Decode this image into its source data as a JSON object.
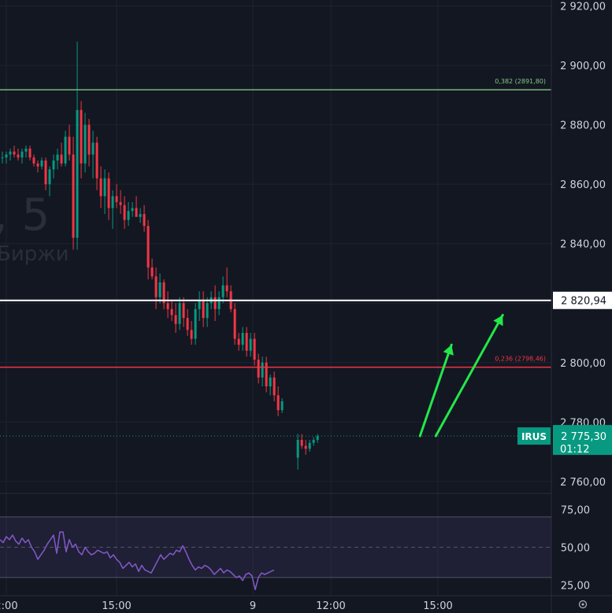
{
  "chart_data": [
    {
      "type": "candlestick",
      "ticker": "IRUS",
      "watermark": {
        "interval": ", 5",
        "source": "Биржи"
      },
      "y_ticks": [
        "2 920,00",
        "2 900,00",
        "2 880,00",
        "2 860,00",
        "2 840,00",
        "2 820,00",
        "2 800,00",
        "2 780,00",
        "2 760,00"
      ],
      "ylim": [
        2756,
        2922
      ],
      "x_ticks": [
        "2:00",
        "15:00",
        "9",
        "12:00",
        "15:00"
      ],
      "grid": true,
      "last_price": {
        "value": 2775.3,
        "label": "2 775,30",
        "countdown": "01:12",
        "ticker": "IRUS",
        "color": "#089981"
      },
      "horizontal_lines": [
        {
          "value": 2891.8,
          "label": "0,382 (2891,80)",
          "color": "#81c784"
        },
        {
          "value": 2820.94,
          "label": "2 820,94",
          "color": "#ffffff"
        },
        {
          "value": 2798.46,
          "label": "0,236 (2798,46)",
          "color": "#f23645"
        }
      ],
      "arrows_color": "#22e84a",
      "arrows": [
        {
          "from": [
            106,
            2775.3
          ],
          "to": [
            114,
            2806
          ]
        },
        {
          "from": [
            110,
            2775.3
          ],
          "to": [
            127,
            2816
          ]
        }
      ],
      "up_color": "#089981",
      "down_color": "#f23645",
      "x_domain": [
        0,
        170
      ],
      "ohlc": [
        [
          0,
          2869,
          2871,
          2867,
          2869
        ],
        [
          1,
          2869,
          2871,
          2867,
          2870
        ],
        [
          2,
          2870,
          2872,
          2868,
          2871
        ],
        [
          3,
          2871,
          2873,
          2869,
          2870
        ],
        [
          4,
          2870,
          2872,
          2868,
          2869
        ],
        [
          5,
          2869,
          2872,
          2867,
          2871
        ],
        [
          6,
          2871,
          2873,
          2869,
          2872
        ],
        [
          7,
          2872,
          2873,
          2868,
          2869
        ],
        [
          8,
          2869,
          2870,
          2866,
          2867
        ],
        [
          9,
          2867,
          2868,
          2864,
          2866
        ],
        [
          10,
          2866,
          2869,
          2865,
          2868
        ],
        [
          11,
          2868,
          2869,
          2858,
          2860
        ],
        [
          12,
          2860,
          2866,
          2856,
          2865
        ],
        [
          13,
          2865,
          2870,
          2862,
          2868
        ],
        [
          14,
          2868,
          2872,
          2865,
          2870
        ],
        [
          15,
          2870,
          2874,
          2866,
          2867
        ],
        [
          16,
          2867,
          2878,
          2866,
          2876
        ],
        [
          17,
          2876,
          2880,
          2868,
          2870
        ],
        [
          18,
          2870,
          2876,
          2838,
          2842
        ],
        [
          19,
          2842,
          2908,
          2838,
          2885
        ],
        [
          20,
          2885,
          2888,
          2862,
          2867
        ],
        [
          21,
          2867,
          2884,
          2864,
          2880
        ],
        [
          22,
          2880,
          2882,
          2866,
          2870
        ],
        [
          23,
          2870,
          2878,
          2862,
          2874
        ],
        [
          24,
          2874,
          2876,
          2858,
          2862
        ],
        [
          25,
          2862,
          2866,
          2852,
          2856
        ],
        [
          26,
          2856,
          2865,
          2850,
          2862
        ],
        [
          27,
          2862,
          2864,
          2848,
          2852
        ],
        [
          28,
          2852,
          2858,
          2845,
          2856
        ],
        [
          29,
          2856,
          2860,
          2852,
          2854
        ],
        [
          30,
          2854,
          2858,
          2850,
          2853
        ],
        [
          31,
          2853,
          2856,
          2845,
          2848
        ],
        [
          32,
          2848,
          2854,
          2846,
          2851
        ],
        [
          33,
          2851,
          2854,
          2849,
          2852
        ],
        [
          34,
          2852,
          2856,
          2850,
          2849
        ],
        [
          35,
          2849,
          2852,
          2847,
          2850
        ],
        [
          36,
          2850,
          2853,
          2844,
          2846
        ],
        [
          37,
          2846,
          2848,
          2828,
          2832
        ],
        [
          38,
          2832,
          2835,
          2828,
          2829
        ],
        [
          39,
          2829,
          2832,
          2818,
          2822
        ],
        [
          40,
          2822,
          2830,
          2820,
          2827
        ],
        [
          41,
          2827,
          2828,
          2818,
          2820
        ],
        [
          42,
          2820,
          2824,
          2815,
          2818
        ],
        [
          43,
          2818,
          2821,
          2814,
          2816
        ],
        [
          44,
          2816,
          2820,
          2810,
          2813
        ],
        [
          45,
          2813,
          2822,
          2811,
          2820
        ],
        [
          46,
          2820,
          2822,
          2812,
          2815
        ],
        [
          47,
          2815,
          2818,
          2809,
          2811
        ],
        [
          48,
          2811,
          2814,
          2806,
          2808
        ],
        [
          49,
          2808,
          2820,
          2806,
          2818
        ],
        [
          50,
          2818,
          2824,
          2814,
          2821
        ],
        [
          51,
          2821,
          2824,
          2812,
          2815
        ],
        [
          52,
          2815,
          2822,
          2812,
          2820
        ],
        [
          53,
          2820,
          2824,
          2818,
          2822
        ],
        [
          54,
          2822,
          2826,
          2814,
          2818
        ],
        [
          55,
          2818,
          2824,
          2816,
          2822
        ],
        [
          56,
          2822,
          2829,
          2820,
          2826
        ],
        [
          57,
          2826,
          2832,
          2822,
          2824
        ],
        [
          58,
          2824,
          2826,
          2817,
          2818
        ],
        [
          59,
          2818,
          2820,
          2806,
          2808
        ],
        [
          60,
          2808,
          2810,
          2804,
          2806
        ],
        [
          61,
          2806,
          2812,
          2804,
          2810
        ],
        [
          62,
          2810,
          2812,
          2802,
          2804
        ],
        [
          63,
          2804,
          2810,
          2802,
          2808
        ],
        [
          64,
          2808,
          2810,
          2799,
          2801
        ],
        [
          65,
          2801,
          2803,
          2793,
          2795
        ],
        [
          66,
          2795,
          2802,
          2792,
          2800
        ],
        [
          67,
          2800,
          2802,
          2790,
          2792
        ],
        [
          68,
          2792,
          2796,
          2789,
          2795
        ],
        [
          69,
          2795,
          2797,
          2787,
          2789
        ],
        [
          70,
          2789,
          2792,
          2782,
          2784
        ],
        [
          71,
          2784,
          2788,
          2783,
          2787
        ],
        [
          75,
          2768,
          2776,
          2764,
          2774
        ],
        [
          76,
          2774,
          2776,
          2771,
          2772
        ],
        [
          77,
          2772,
          2774,
          2769,
          2771
        ],
        [
          78,
          2771,
          2774,
          2770,
          2773
        ],
        [
          79,
          2773,
          2775,
          2772,
          2774
        ],
        [
          80,
          2774,
          2776,
          2773,
          2775.3
        ]
      ]
    },
    {
      "type": "line",
      "indicator": "oscillator",
      "y_ticks": [
        "75,00",
        "50,00",
        "25,00"
      ],
      "ylim": [
        18,
        85
      ],
      "band": [
        30,
        70
      ],
      "midline": 50,
      "color": "#7e57c2",
      "values": [
        55,
        53,
        57,
        55,
        58,
        54,
        52,
        56,
        53,
        55,
        50,
        47,
        42,
        45,
        48,
        52,
        55,
        58,
        46,
        60,
        60,
        47,
        55,
        50,
        52,
        47,
        45,
        50,
        47,
        45,
        46,
        48,
        47,
        46,
        47,
        43,
        45,
        42,
        40,
        36,
        38,
        40,
        37,
        39,
        34,
        38,
        35,
        34,
        33,
        37,
        41,
        45,
        42,
        44,
        46,
        45,
        48,
        47,
        51,
        47,
        42,
        38,
        35,
        37,
        36,
        38,
        37,
        35,
        32,
        34,
        36,
        33,
        35,
        34,
        32,
        30,
        31,
        28,
        32,
        33,
        31,
        22,
        30,
        33,
        32,
        33,
        34,
        35
      ]
    }
  ]
}
